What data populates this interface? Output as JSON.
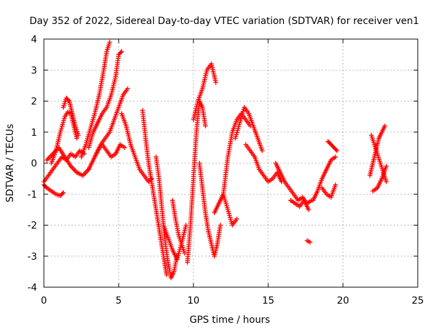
{
  "chart_data": {
    "type": "scatter",
    "title": "Day 352 of 2022, Sidereal Day-to-day VTEC variation (SDTVAR) for receiver ven1",
    "xlabel": "GPS time / hours",
    "ylabel": "SDTVAR / TECUs",
    "xlim": [
      0,
      25
    ],
    "ylim": [
      -4,
      4
    ],
    "xticks": [
      0,
      5,
      10,
      15,
      20,
      25
    ],
    "yticks": [
      -4,
      -3,
      -2,
      -1,
      0,
      1,
      2,
      3,
      4
    ],
    "grid": true,
    "marker": "plus",
    "color": "#ff0000",
    "series": [
      {
        "x": [
          0.0,
          0.3,
          0.6,
          0.9,
          1.2,
          1.5,
          1.8,
          2.1,
          2.4,
          2.7
        ],
        "y": [
          -0.6,
          -0.4,
          -0.2,
          0.0,
          0.2,
          0.1,
          0.3,
          0.2,
          0.4,
          0.3
        ]
      },
      {
        "x": [
          0.0,
          0.2,
          0.5,
          0.8,
          1.1,
          1.3
        ],
        "y": [
          -0.7,
          -0.8,
          -0.9,
          -1.0,
          -1.05,
          -0.95
        ]
      },
      {
        "x": [
          0.5,
          0.8,
          1.1,
          1.4,
          1.6,
          1.8,
          2.0,
          2.2
        ],
        "y": [
          0.0,
          0.4,
          1.0,
          1.5,
          1.65,
          1.6,
          1.2,
          0.8
        ]
      },
      {
        "x": [
          1.3,
          1.5,
          1.7,
          1.9,
          2.1,
          2.3
        ],
        "y": [
          1.8,
          2.1,
          2.0,
          1.6,
          1.2,
          0.9
        ]
      },
      {
        "x": [
          0.2,
          0.6,
          1.0,
          1.4,
          1.8,
          2.2,
          2.6,
          3.0
        ],
        "y": [
          0.1,
          0.3,
          0.5,
          0.2,
          -0.1,
          -0.3,
          -0.4,
          -0.2
        ]
      },
      {
        "x": [
          2.5,
          2.8,
          3.1,
          3.4,
          3.7,
          4.0,
          4.2,
          4.4
        ],
        "y": [
          0.2,
          0.6,
          1.1,
          1.6,
          2.2,
          3.0,
          3.6,
          3.9
        ]
      },
      {
        "x": [
          3.0,
          3.3,
          3.6,
          3.9,
          4.2,
          4.5,
          4.8,
          5.0,
          5.2
        ],
        "y": [
          0.5,
          1.0,
          1.3,
          1.6,
          1.8,
          2.2,
          2.8,
          3.5,
          3.6
        ]
      },
      {
        "x": [
          3.5,
          3.8,
          4.1,
          4.4,
          4.7,
          5.0,
          5.3,
          5.6
        ],
        "y": [
          0.3,
          0.6,
          0.8,
          1.0,
          1.4,
          1.8,
          2.2,
          2.4
        ]
      },
      {
        "x": [
          3.0,
          3.3,
          3.6,
          3.9,
          4.2,
          4.5,
          4.8,
          5.1,
          5.4
        ],
        "y": [
          -0.2,
          0.1,
          0.4,
          0.6,
          0.4,
          0.2,
          0.3,
          0.6,
          0.5
        ]
      },
      {
        "x": [
          5.2,
          5.5,
          5.8,
          6.1,
          6.4,
          6.7,
          7.0,
          7.2
        ],
        "y": [
          1.6,
          1.2,
          0.6,
          0.2,
          -0.2,
          -0.4,
          -0.6,
          -0.5
        ]
      },
      {
        "x": [
          6.6,
          6.8,
          7.0,
          7.2,
          7.4,
          7.6,
          7.8,
          8.0,
          8.2
        ],
        "y": [
          1.7,
          0.8,
          0.0,
          -0.6,
          -1.2,
          -1.8,
          -2.4,
          -3.0,
          -3.6
        ]
      },
      {
        "x": [
          7.5,
          7.7,
          7.9,
          8.1,
          8.3,
          8.5,
          8.7,
          8.9
        ],
        "y": [
          0.2,
          -0.5,
          -1.5,
          -2.5,
          -3.2,
          -3.7,
          -3.5,
          -3.0
        ]
      },
      {
        "x": [
          8.0,
          8.3,
          8.6,
          8.9,
          9.2,
          9.5
        ],
        "y": [
          -2.0,
          -2.4,
          -2.8,
          -3.1,
          -2.6,
          -2.0
        ]
      },
      {
        "x": [
          8.6,
          8.8,
          9.0,
          9.2,
          9.4
        ],
        "y": [
          -1.2,
          -1.8,
          -2.3,
          -2.6,
          -2.9
        ]
      },
      {
        "x": [
          9.6,
          9.8,
          10.0,
          10.2,
          10.4,
          10.6,
          10.8
        ],
        "y": [
          -3.2,
          -2.0,
          -0.5,
          1.0,
          2.0,
          1.8,
          1.2
        ]
      },
      {
        "x": [
          10.0,
          10.3,
          10.6,
          10.9,
          11.2,
          11.5
        ],
        "y": [
          1.4,
          2.0,
          2.4,
          3.0,
          3.2,
          2.6
        ]
      },
      {
        "x": [
          10.4,
          10.6,
          10.8,
          11.0,
          11.2,
          11.4,
          11.6,
          11.8
        ],
        "y": [
          0.0,
          -0.8,
          -1.6,
          -2.2,
          -2.6,
          -3.0,
          -2.6,
          -2.0
        ]
      },
      {
        "x": [
          11.4,
          11.7,
          12.0,
          12.3,
          12.6,
          12.9
        ],
        "y": [
          -1.6,
          -1.3,
          -1.0,
          -1.5,
          -2.0,
          -1.8
        ]
      },
      {
        "x": [
          12.0,
          12.3,
          12.6,
          12.9,
          13.2,
          13.5,
          13.8
        ],
        "y": [
          -1.0,
          0.2,
          1.0,
          1.4,
          1.6,
          1.4,
          1.2
        ]
      },
      {
        "x": [
          12.8,
          13.1,
          13.4,
          13.7,
          14.0,
          14.3,
          14.6
        ],
        "y": [
          0.8,
          1.3,
          1.8,
          1.6,
          1.2,
          0.8,
          0.4
        ]
      },
      {
        "x": [
          13.5,
          13.8,
          14.1,
          14.4,
          14.7,
          15.0,
          15.3,
          15.6,
          15.9
        ],
        "y": [
          0.6,
          0.4,
          0.2,
          -0.2,
          -0.4,
          -0.6,
          -0.5,
          -0.3,
          -0.6
        ]
      },
      {
        "x": [
          15.5,
          15.8,
          16.1,
          16.4,
          16.7,
          17.0,
          17.3,
          17.6,
          17.9
        ],
        "y": [
          0.0,
          -0.3,
          -0.6,
          -0.8,
          -1.0,
          -1.2,
          -1.1,
          -1.3,
          -1.2
        ]
      },
      {
        "x": [
          16.5,
          16.8,
          17.1,
          17.4,
          17.7
        ],
        "y": [
          -1.2,
          -1.3,
          -1.4,
          -1.2,
          -1.5
        ]
      },
      {
        "x": [
          17.6,
          17.8
        ],
        "y": [
          -2.5,
          -2.55
        ]
      },
      {
        "x": [
          18.0,
          18.3,
          18.6,
          18.9,
          19.2,
          19.5
        ],
        "y": [
          -1.2,
          -0.9,
          -0.5,
          -0.2,
          0.1,
          0.2
        ]
      },
      {
        "x": [
          18.6,
          18.9,
          19.2,
          19.5
        ],
        "y": [
          -0.8,
          -1.0,
          -1.1,
          -0.7
        ]
      },
      {
        "x": [
          19.0,
          19.2,
          19.4,
          19.6
        ],
        "y": [
          0.7,
          0.6,
          0.5,
          0.4
        ]
      },
      {
        "x": [
          21.8,
          22.0,
          22.2,
          22.4,
          22.6,
          22.8
        ],
        "y": [
          -0.4,
          0.0,
          0.4,
          0.8,
          1.0,
          1.2
        ]
      },
      {
        "x": [
          21.9,
          22.1,
          22.3,
          22.5,
          22.7,
          22.9
        ],
        "y": [
          0.9,
          0.6,
          0.3,
          0.0,
          -0.3,
          -0.6
        ]
      },
      {
        "x": [
          22.0,
          22.3,
          22.6,
          22.9
        ],
        "y": [
          -0.9,
          -0.8,
          -0.5,
          -0.1
        ]
      }
    ]
  }
}
